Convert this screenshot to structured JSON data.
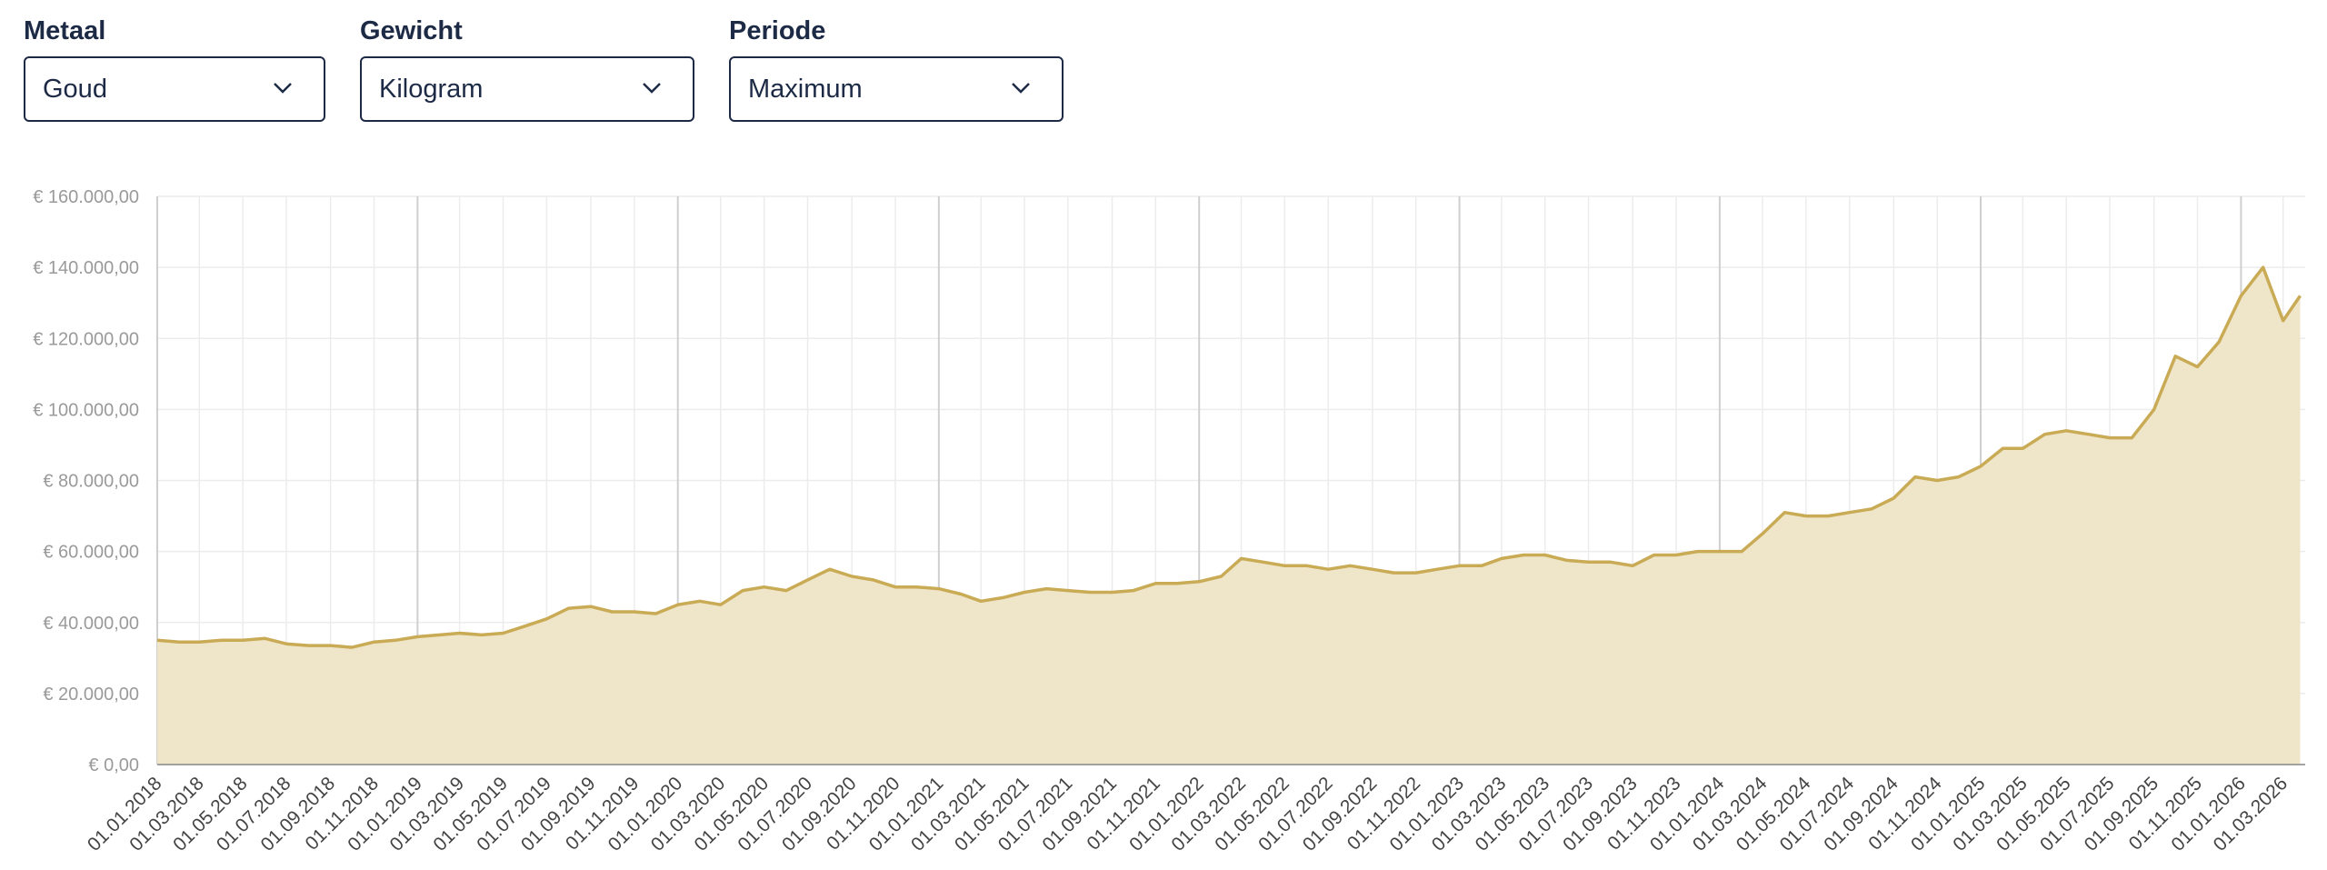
{
  "filters": [
    {
      "label": "Metaal",
      "value": "Goud"
    },
    {
      "label": "Gewicht",
      "value": "Kilogram"
    },
    {
      "label": "Periode",
      "value": "Maximum"
    }
  ],
  "chart_data": {
    "type": "area",
    "color": "#c9aa55",
    "fill": "#efe5c8",
    "grid": true,
    "x": [
      "2018-01-01",
      "2018-02-01",
      "2018-03-01",
      "2018-04-01",
      "2018-05-01",
      "2018-06-01",
      "2018-07-01",
      "2018-08-01",
      "2018-09-01",
      "2018-10-01",
      "2018-11-01",
      "2018-12-01",
      "2019-01-01",
      "2019-02-01",
      "2019-03-01",
      "2019-04-01",
      "2019-05-01",
      "2019-06-01",
      "2019-07-01",
      "2019-08-01",
      "2019-09-01",
      "2019-10-01",
      "2019-11-01",
      "2019-12-01",
      "2020-01-01",
      "2020-02-01",
      "2020-03-01",
      "2020-04-01",
      "2020-05-01",
      "2020-06-01",
      "2020-07-01",
      "2020-08-01",
      "2020-09-01",
      "2020-10-01",
      "2020-11-01",
      "2020-12-01",
      "2021-01-01",
      "2021-02-01",
      "2021-03-01",
      "2021-04-01",
      "2021-05-01",
      "2021-06-01",
      "2021-07-01",
      "2021-08-01",
      "2021-09-01",
      "2021-10-01",
      "2021-11-01",
      "2021-12-01",
      "2022-01-01",
      "2022-02-01",
      "2022-03-01",
      "2022-04-01",
      "2022-05-01",
      "2022-06-01",
      "2022-07-01",
      "2022-08-01",
      "2022-09-01",
      "2022-10-01",
      "2022-11-01",
      "2022-12-01",
      "2023-01-01",
      "2023-02-01",
      "2023-03-01",
      "2023-04-01",
      "2023-05-01",
      "2023-06-01",
      "2023-07-01",
      "2023-08-01",
      "2023-09-01",
      "2023-10-01",
      "2023-11-01",
      "2023-12-01",
      "2024-01-01",
      "2024-02-01",
      "2024-03-01",
      "2024-04-01",
      "2024-05-01",
      "2024-06-01",
      "2024-07-01",
      "2024-08-01",
      "2024-09-01",
      "2024-10-01",
      "2024-11-01",
      "2024-12-01",
      "2025-01-01",
      "2025-02-01",
      "2025-03-01",
      "2025-04-01",
      "2025-05-01",
      "2025-06-01",
      "2025-07-01",
      "2025-08-01",
      "2025-09-01",
      "2025-10-01",
      "2025-11-01",
      "2025-12-01",
      "2026-01-01",
      "2026-02-01",
      "2026-03-01",
      "2026-03-25"
    ],
    "series": [
      {
        "name": "Goud",
        "values": [
          35000,
          34500,
          34500,
          35000,
          35000,
          35500,
          34000,
          33500,
          33500,
          33000,
          34500,
          35000,
          36000,
          36500,
          37000,
          36500,
          37000,
          39000,
          41000,
          44000,
          44500,
          43000,
          43000,
          42500,
          45000,
          46000,
          45000,
          49000,
          50000,
          49000,
          52000,
          55000,
          53000,
          52000,
          50000,
          50000,
          49500,
          48000,
          46000,
          47000,
          48500,
          49500,
          49000,
          48500,
          48500,
          49000,
          51000,
          51000,
          51500,
          53000,
          58000,
          57000,
          56000,
          56000,
          55000,
          56000,
          55000,
          54000,
          54000,
          55000,
          56000,
          56000,
          58000,
          59000,
          59000,
          57500,
          57000,
          57000,
          56000,
          59000,
          59000,
          60000,
          60000,
          60000,
          65000,
          71000,
          70000,
          70000,
          71000,
          72000,
          75000,
          81000,
          80000,
          81000,
          84000,
          89000,
          89000,
          93000,
          94000,
          93000,
          92000,
          92000,
          100000,
          115000,
          112000,
          119000,
          132000,
          140000,
          125000,
          132000
        ]
      }
    ],
    "xlim": [
      "2018-01-01",
      "2026-04-01"
    ],
    "ylim": [
      0,
      160000
    ],
    "yticks": [
      {
        "value": 0,
        "label": "€ 0,00"
      },
      {
        "value": 20000,
        "label": "€ 20.000,00"
      },
      {
        "value": 40000,
        "label": "€ 40.000,00"
      },
      {
        "value": 60000,
        "label": "€ 60.000,00"
      },
      {
        "value": 80000,
        "label": "€ 80.000,00"
      },
      {
        "value": 100000,
        "label": "€ 100.000,00"
      },
      {
        "value": 120000,
        "label": "€ 120.000,00"
      },
      {
        "value": 140000,
        "label": "€ 140.000,00"
      },
      {
        "value": 160000,
        "label": "€ 160.000,00"
      }
    ],
    "xticks": [
      {
        "value": "2018-01-01",
        "label": "01.01.2018"
      },
      {
        "value": "2018-03-01",
        "label": "01.03.2018"
      },
      {
        "value": "2018-05-01",
        "label": "01.05.2018"
      },
      {
        "value": "2018-07-01",
        "label": "01.07.2018"
      },
      {
        "value": "2018-09-01",
        "label": "01.09.2018"
      },
      {
        "value": "2018-11-01",
        "label": "01.11.2018"
      },
      {
        "value": "2019-01-01",
        "label": "01.01.2019"
      },
      {
        "value": "2019-03-01",
        "label": "01.03.2019"
      },
      {
        "value": "2019-05-01",
        "label": "01.05.2019"
      },
      {
        "value": "2019-07-01",
        "label": "01.07.2019"
      },
      {
        "value": "2019-09-01",
        "label": "01.09.2019"
      },
      {
        "value": "2019-11-01",
        "label": "01.11.2019"
      },
      {
        "value": "2020-01-01",
        "label": "01.01.2020"
      },
      {
        "value": "2020-03-01",
        "label": "01.03.2020"
      },
      {
        "value": "2020-05-01",
        "label": "01.05.2020"
      },
      {
        "value": "2020-07-01",
        "label": "01.07.2020"
      },
      {
        "value": "2020-09-01",
        "label": "01.09.2020"
      },
      {
        "value": "2020-11-01",
        "label": "01.11.2020"
      },
      {
        "value": "2021-01-01",
        "label": "01.01.2021"
      },
      {
        "value": "2021-03-01",
        "label": "01.03.2021"
      },
      {
        "value": "2021-05-01",
        "label": "01.05.2021"
      },
      {
        "value": "2021-07-01",
        "label": "01.07.2021"
      },
      {
        "value": "2021-09-01",
        "label": "01.09.2021"
      },
      {
        "value": "2021-11-01",
        "label": "01.11.2021"
      },
      {
        "value": "2022-01-01",
        "label": "01.01.2022"
      },
      {
        "value": "2022-03-01",
        "label": "01.03.2022"
      },
      {
        "value": "2022-05-01",
        "label": "01.05.2022"
      },
      {
        "value": "2022-07-01",
        "label": "01.07.2022"
      },
      {
        "value": "2022-09-01",
        "label": "01.09.2022"
      },
      {
        "value": "2022-11-01",
        "label": "01.11.2022"
      },
      {
        "value": "2023-01-01",
        "label": "01.01.2023"
      },
      {
        "value": "2023-03-01",
        "label": "01.03.2023"
      },
      {
        "value": "2023-05-01",
        "label": "01.05.2023"
      },
      {
        "value": "2023-07-01",
        "label": "01.07.2023"
      },
      {
        "value": "2023-09-01",
        "label": "01.09.2023"
      },
      {
        "value": "2023-11-01",
        "label": "01.11.2023"
      },
      {
        "value": "2024-01-01",
        "label": "01.01.2024"
      },
      {
        "value": "2024-03-01",
        "label": "01.03.2024"
      },
      {
        "value": "2024-05-01",
        "label": "01.05.2024"
      },
      {
        "value": "2024-07-01",
        "label": "01.07.2024"
      },
      {
        "value": "2024-09-01",
        "label": "01.09.2024"
      },
      {
        "value": "2024-11-01",
        "label": "01.11.2024"
      },
      {
        "value": "2025-01-01",
        "label": "01.01.2025"
      },
      {
        "value": "2025-03-01",
        "label": "01.03.2025"
      },
      {
        "value": "2025-05-01",
        "label": "01.05.2025"
      },
      {
        "value": "2025-07-01",
        "label": "01.07.2025"
      },
      {
        "value": "2025-09-01",
        "label": "01.09.2025"
      },
      {
        "value": "2025-11-01",
        "label": "01.11.2025"
      },
      {
        "value": "2026-01-01",
        "label": "01.01.2026"
      },
      {
        "value": "2026-03-01",
        "label": "01.03.2026"
      }
    ]
  }
}
